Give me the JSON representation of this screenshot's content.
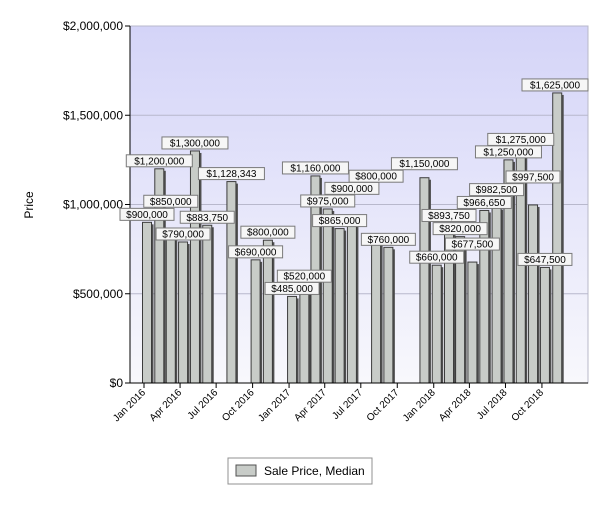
{
  "chart_data": {
    "type": "bar",
    "ylabel": "Price",
    "ylim": [
      0,
      2000000
    ],
    "y_ticks": [
      0,
      500000,
      1000000,
      1500000,
      2000000
    ],
    "y_tick_labels": [
      "$0",
      "$500,000",
      "$1,000,000",
      "$1,500,000",
      "$2,000,000"
    ],
    "x_tick_labels": [
      "Jan 2016",
      "Apr 2016",
      "Jul 2016",
      "Oct 2016",
      "Jan 2017",
      "Apr 2017",
      "Jul 2017",
      "Oct 2017",
      "Jan 2018",
      "Apr 2018",
      "Jul 2018",
      "Oct 2018"
    ],
    "grid": true,
    "legend_placement": "bottom",
    "series": [
      {
        "name": "Sale Price, Median",
        "color": "#c8ccc8",
        "points": [
          {
            "date": "2016-01",
            "value": 900000,
            "label": "$900,000"
          },
          {
            "date": "2016-02",
            "value": 1200000,
            "label": "$1,200,000"
          },
          {
            "date": "2016-03",
            "value": 850000,
            "label": "$850,000"
          },
          {
            "date": "2016-04",
            "value": 790000,
            "label": "$790,000"
          },
          {
            "date": "2016-05",
            "value": 1300000,
            "label": "$1,300,000"
          },
          {
            "date": "2016-06",
            "value": 883750,
            "label": "$883,750"
          },
          {
            "date": "2016-08",
            "value": 1128343,
            "label": "$1,128,343"
          },
          {
            "date": "2016-10",
            "value": 690000,
            "label": "$690,000"
          },
          {
            "date": "2016-11",
            "value": 800000,
            "label": "$800,000"
          },
          {
            "date": "2017-01",
            "value": 485000,
            "label": "$485,000"
          },
          {
            "date": "2017-02",
            "value": 520000,
            "label": "$520,000"
          },
          {
            "date": "2017-03",
            "value": 1160000,
            "label": "$1,160,000"
          },
          {
            "date": "2017-04",
            "value": 975000,
            "label": "$975,000"
          },
          {
            "date": "2017-05",
            "value": 865000,
            "label": "$865,000"
          },
          {
            "date": "2017-06",
            "value": 900000,
            "label": "$900,000"
          },
          {
            "date": "2017-08",
            "value": 800000,
            "label": "$800,000"
          },
          {
            "date": "2017-09",
            "value": 760000,
            "label": "$760,000"
          },
          {
            "date": "2017-12",
            "value": 1150000,
            "label": "$1,150,000"
          },
          {
            "date": "2018-01",
            "value": 660000,
            "label": "$660,000"
          },
          {
            "date": "2018-02",
            "value": 893750,
            "label": "$893,750"
          },
          {
            "date": "2018-03",
            "value": 820000,
            "label": "$820,000"
          },
          {
            "date": "2018-04",
            "value": 677500,
            "label": "$677,500"
          },
          {
            "date": "2018-05",
            "value": 966650,
            "label": "$966,650"
          },
          {
            "date": "2018-06",
            "value": 982500,
            "label": "$982,500"
          },
          {
            "date": "2018-07",
            "value": 1250000,
            "label": "$1,250,000"
          },
          {
            "date": "2018-08",
            "value": 1275000,
            "label": "$1,275,000"
          },
          {
            "date": "2018-09",
            "value": 997500,
            "label": "$997,500"
          },
          {
            "date": "2018-10",
            "value": 647500,
            "label": "$647,500"
          },
          {
            "date": "2018-11",
            "value": 1625000,
            "label": "$1,625,000"
          }
        ]
      }
    ]
  }
}
